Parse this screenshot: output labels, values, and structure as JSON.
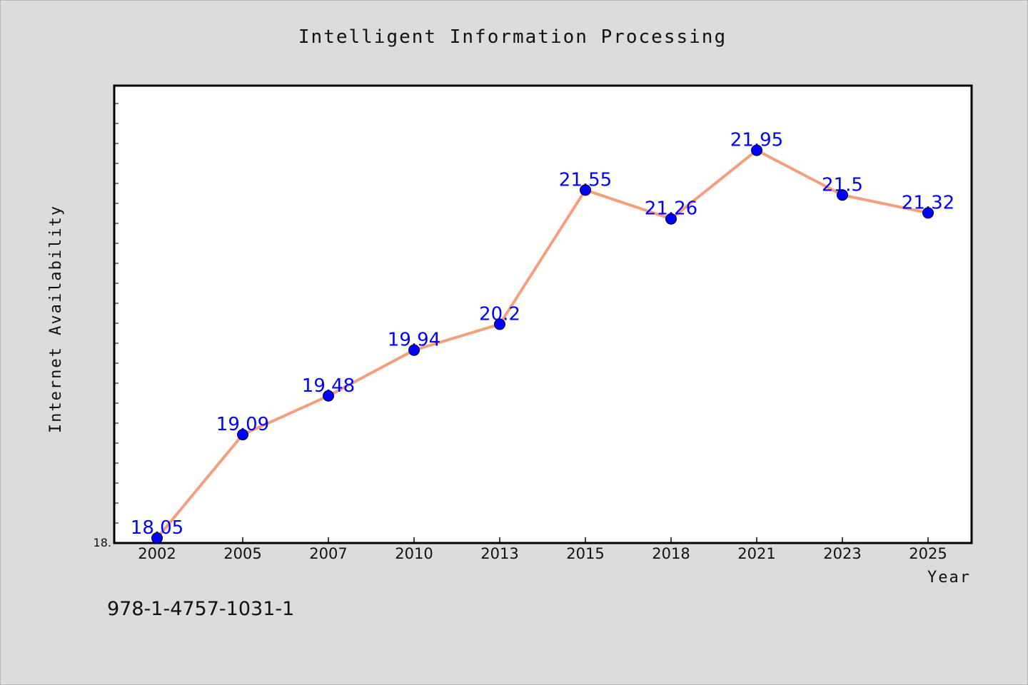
{
  "chart_data": {
    "type": "line",
    "title": "Intelligent Information Processing",
    "xlabel": "Year",
    "ylabel": "Internet Availability",
    "categories": [
      "2002",
      "2005",
      "2007",
      "2010",
      "2013",
      "2015",
      "2018",
      "2021",
      "2023",
      "2025"
    ],
    "series": [
      {
        "values": [
          18.05,
          19.09,
          19.48,
          19.94,
          20.2,
          21.55,
          21.26,
          21.95,
          21.5,
          21.32
        ],
        "labels": [
          "18.05",
          "19.09",
          "19.48",
          "19.94",
          "20.2",
          "21.55",
          "21.26",
          "21.95",
          "21.5",
          "21.32"
        ],
        "line_color": "#f4a07c",
        "marker_color": "#0000ff"
      }
    ],
    "ylim": [
      18.0,
      22.6
    ],
    "y_tick_label": "18.",
    "grid": false,
    "legend": "none"
  },
  "footer": {
    "isbn": "978-1-4757-1031-1"
  }
}
